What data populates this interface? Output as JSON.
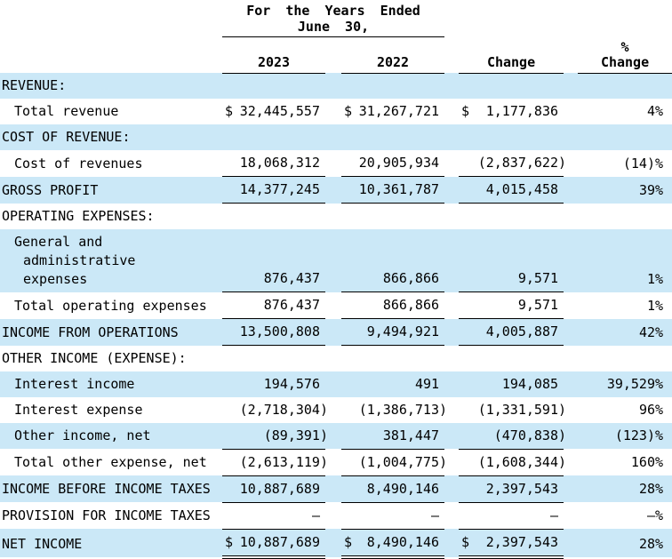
{
  "colors": {
    "row_shade": "#cbe8f7",
    "text": "#000000",
    "background": "#ffffff",
    "rule": "#000000"
  },
  "header": {
    "period_line1": "For the Years Ended",
    "period_line2": "June 30,",
    "col_2023": "2023",
    "col_2022": "2022",
    "col_change": "Change",
    "col_pct_line1": "%",
    "col_pct_line2": "Change"
  },
  "table": {
    "currency_symbol": "$",
    "rows": [
      {
        "label": "REVENUE:",
        "indent": 0,
        "shade": true,
        "dollar": false,
        "v2023": "",
        "v2022": "",
        "change": "",
        "pct": "",
        "rule": "none"
      },
      {
        "label": "Total revenue",
        "indent": 1,
        "shade": false,
        "dollar": true,
        "v2023": "32,445,557",
        "v2022": "31,267,721",
        "change": "1,177,836",
        "pct": "4%",
        "rule": "none"
      },
      {
        "label": "COST OF REVENUE:",
        "indent": 0,
        "shade": true,
        "dollar": false,
        "v2023": "",
        "v2022": "",
        "change": "",
        "pct": "",
        "rule": "none"
      },
      {
        "label": "Cost of revenues",
        "indent": 1,
        "shade": false,
        "dollar": false,
        "v2023": "18,068,312",
        "v2022": "20,905,934",
        "change": "(2,837,622)",
        "pct": "(14)%",
        "rule": "single"
      },
      {
        "label": "GROSS PROFIT",
        "indent": 0,
        "shade": true,
        "dollar": false,
        "v2023": "14,377,245",
        "v2022": "10,361,787",
        "change": "4,015,458",
        "pct": "39%",
        "rule": "single"
      },
      {
        "label": "OPERATING EXPENSES:",
        "indent": 0,
        "shade": false,
        "dollar": false,
        "v2023": "",
        "v2022": "",
        "change": "",
        "pct": "",
        "rule": "none"
      },
      {
        "label": [
          "General and",
          "administrative",
          "expenses"
        ],
        "indent": 1,
        "shade": true,
        "dollar": false,
        "v2023": "876,437",
        "v2022": "866,866",
        "change": "9,571",
        "pct": "1%",
        "rule": "single"
      },
      {
        "label": "Total operating expenses",
        "indent": 1,
        "shade": false,
        "dollar": false,
        "v2023": "876,437",
        "v2022": "866,866",
        "change": "9,571",
        "pct": "1%",
        "rule": "single"
      },
      {
        "label": "INCOME FROM OPERATIONS",
        "indent": 0,
        "shade": true,
        "dollar": false,
        "v2023": "13,500,808",
        "v2022": "9,494,921",
        "change": "4,005,887",
        "pct": "42%",
        "rule": "single"
      },
      {
        "label": "OTHER INCOME (EXPENSE):",
        "indent": 0,
        "shade": false,
        "dollar": false,
        "v2023": "",
        "v2022": "",
        "change": "",
        "pct": "",
        "rule": "none"
      },
      {
        "label": "Interest income",
        "indent": 1,
        "shade": true,
        "dollar": false,
        "v2023": "194,576",
        "v2022": "491",
        "change": "194,085",
        "pct": "39,529%",
        "rule": "none"
      },
      {
        "label": "Interest expense",
        "indent": 1,
        "shade": false,
        "dollar": false,
        "v2023": "(2,718,304)",
        "v2022": "(1,386,713)",
        "change": "(1,331,591)",
        "pct": "96%",
        "rule": "none"
      },
      {
        "label": "Other income, net",
        "indent": 1,
        "shade": true,
        "dollar": false,
        "v2023": "(89,391)",
        "v2022": "381,447",
        "change": "(470,838)",
        "pct": "(123)%",
        "rule": "single"
      },
      {
        "label": "Total other expense, net",
        "indent": 1,
        "shade": false,
        "dollar": false,
        "v2023": "(2,613,119)",
        "v2022": "(1,004,775)",
        "change": "(1,608,344)",
        "pct": "160%",
        "rule": "single"
      },
      {
        "label": "INCOME BEFORE INCOME TAXES",
        "indent": 0,
        "shade": true,
        "dollar": false,
        "v2023": "10,887,689",
        "v2022": "8,490,146",
        "change": "2,397,543",
        "pct": "28%",
        "rule": "single"
      },
      {
        "label": "PROVISION FOR INCOME TAXES",
        "indent": 0,
        "shade": false,
        "dollar": false,
        "v2023": "—",
        "v2022": "—",
        "change": "—",
        "pct": "—%",
        "rule": "single"
      },
      {
        "label": "NET INCOME",
        "indent": 0,
        "shade": true,
        "dollar": true,
        "v2023": "10,887,689",
        "v2022": "8,490,146",
        "change": "2,397,543",
        "pct": "28%",
        "rule": "double"
      }
    ]
  }
}
